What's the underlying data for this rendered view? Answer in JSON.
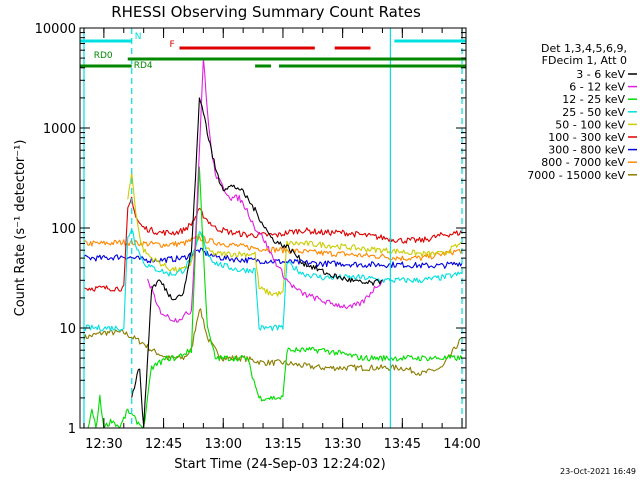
{
  "chart_data": {
    "type": "line",
    "title": "RHESSI Observing Summary Count Rates",
    "xlabel": "Start Time (24-Sep-03 12:24:02)",
    "ylabel": "Count Rate (s⁻¹ detector⁻¹)",
    "xlim": [
      "12:24",
      "14:01"
    ],
    "ylim": [
      1,
      10000
    ],
    "y_scale": "log",
    "x_ticks": [
      "12:30",
      "12:45",
      "13:00",
      "13:15",
      "13:30",
      "13:45",
      "14:00"
    ],
    "y_ticks": [
      "1",
      "10",
      "100",
      "1000",
      "10000"
    ],
    "legend_placement": "right",
    "legend_header": [
      "Det 1,3,4,5,6,9,",
      "FDecim 1, Att 0"
    ],
    "date_stamp": "23-Oct-2021 16:49",
    "series": [
      {
        "name": "3 - 6 keV",
        "color": "#000000",
        "x": [
          "12:37",
          "12:38",
          "12:39",
          "12:40",
          "12:42",
          "12:44",
          "12:47",
          "12:50",
          "12:52",
          "12:53",
          "12:54",
          "12:55",
          "12:56",
          "12:57",
          "12:58",
          "12:59",
          "13:00",
          "13:02",
          "13:04",
          "13:06",
          "13:08",
          "13:10",
          "13:12",
          "13:14",
          "13:16",
          "13:18",
          "13:20",
          "13:23",
          "13:26",
          "13:29",
          "13:32",
          "13:35",
          "13:38",
          "13:40"
        ],
        "y": [
          2,
          3,
          4,
          1,
          25,
          30,
          20,
          22,
          60,
          300,
          2000,
          1500,
          900,
          600,
          400,
          300,
          250,
          260,
          250,
          200,
          150,
          110,
          80,
          70,
          65,
          55,
          45,
          40,
          35,
          32,
          30,
          28,
          28,
          30
        ]
      },
      {
        "name": "6 - 12 keV",
        "color": "#e020e0",
        "x": [
          "12:41",
          "12:42",
          "12:43",
          "12:44",
          "12:46",
          "12:48",
          "12:50",
          "12:52",
          "12:53",
          "12:54",
          "12:55",
          "12:56",
          "12:57",
          "12:58",
          "13:00",
          "13:02",
          "13:04",
          "13:06",
          "13:08",
          "13:10",
          "13:12",
          "13:14",
          "13:16",
          "13:18",
          "13:20",
          "13:23",
          "13:26",
          "13:29",
          "13:32",
          "13:35",
          "13:38",
          "13:40"
        ],
        "y": [
          30,
          25,
          18,
          15,
          13,
          12,
          13,
          15,
          80,
          600,
          5000,
          1500,
          600,
          350,
          250,
          200,
          200,
          150,
          100,
          80,
          55,
          40,
          30,
          25,
          22,
          20,
          18,
          17,
          16,
          18,
          25,
          30
        ]
      },
      {
        "name": "12 - 25 keV",
        "color": "#00dd00",
        "x": [
          "12:26",
          "12:27",
          "12:28",
          "12:29",
          "12:30",
          "12:32",
          "12:34",
          "12:36",
          "12:38",
          "12:40",
          "12:42",
          "12:44",
          "12:46",
          "12:48",
          "12:50",
          "12:52",
          "12:53",
          "12:54",
          "12:55",
          "12:56",
          "12:58",
          "13:00",
          "13:02",
          "13:04",
          "13:06",
          "13:09",
          "13:11",
          "13:13",
          "13:15",
          "13:16",
          "13:20",
          "13:25",
          "13:30",
          "13:35",
          "13:40",
          "13:45",
          "13:50",
          "13:55",
          "14:00"
        ],
        "y": [
          1,
          1.5,
          1,
          2,
          1,
          1.2,
          1,
          1.5,
          1.2,
          1,
          4,
          4.5,
          5,
          5,
          5.5,
          6,
          60,
          400,
          60,
          10,
          5,
          5,
          5,
          5,
          5,
          2,
          2,
          2,
          2,
          6,
          6,
          6,
          5.5,
          5,
          5,
          5,
          5,
          5,
          5
        ]
      },
      {
        "name": "25 - 50 keV",
        "color": "#00e0e0",
        "x": [
          "12:25",
          "12:30",
          "12:35",
          "12:36",
          "12:37",
          "12:38",
          "12:39",
          "12:40",
          "12:42",
          "12:44",
          "12:46",
          "12:48",
          "12:50",
          "12:52",
          "12:53",
          "12:54",
          "12:55",
          "12:56",
          "12:58",
          "13:00",
          "13:02",
          "13:04",
          "13:06",
          "13:08",
          "13:09",
          "13:12",
          "13:15",
          "13:16",
          "13:20",
          "13:25",
          "13:30",
          "13:35",
          "13:40",
          "13:45",
          "13:50",
          "13:55",
          "14:00"
        ],
        "y": [
          10,
          10,
          10,
          80,
          100,
          70,
          55,
          45,
          40,
          38,
          35,
          35,
          38,
          50,
          60,
          90,
          80,
          55,
          45,
          42,
          40,
          38,
          38,
          38,
          10,
          10,
          10,
          45,
          35,
          32,
          32,
          32,
          30,
          30,
          30,
          32,
          35
        ]
      },
      {
        "name": "50 - 100 keV",
        "color": "#cccc00",
        "x": [
          "12:36",
          "12:37",
          "12:38",
          "12:39",
          "12:40",
          "12:42",
          "12:44",
          "12:46",
          "12:48",
          "12:50",
          "12:52",
          "12:54",
          "12:56",
          "12:58",
          "13:00",
          "13:02",
          "13:04",
          "13:06",
          "13:08",
          "13:09",
          "13:12",
          "13:15",
          "13:16",
          "13:20",
          "13:25",
          "13:30",
          "13:35",
          "13:40",
          "13:45",
          "13:50",
          "13:55",
          "14:00"
        ],
        "y": [
          200,
          350,
          150,
          80,
          60,
          50,
          45,
          40,
          38,
          38,
          45,
          90,
          60,
          55,
          55,
          55,
          55,
          55,
          55,
          25,
          22,
          22,
          70,
          70,
          68,
          65,
          62,
          60,
          58,
          55,
          55,
          70
        ]
      },
      {
        "name": "100 - 300 keV",
        "color": "#dd0000",
        "x": [
          "12:25",
          "12:30",
          "12:35",
          "12:36",
          "12:37",
          "12:38",
          "12:39",
          "12:40",
          "12:42",
          "12:44",
          "12:46",
          "12:48",
          "12:50",
          "12:52",
          "12:54",
          "12:56",
          "12:58",
          "13:00",
          "13:02",
          "13:04",
          "13:06",
          "13:08",
          "13:10",
          "13:12",
          "13:14",
          "13:16",
          "13:20",
          "13:25",
          "13:30",
          "13:35",
          "13:40",
          "13:45",
          "13:50",
          "13:55",
          "14:00"
        ],
        "y": [
          25,
          25,
          25,
          150,
          200,
          130,
          110,
          100,
          95,
          90,
          90,
          90,
          95,
          110,
          150,
          120,
          100,
          95,
          90,
          88,
          85,
          85,
          85,
          85,
          85,
          90,
          95,
          90,
          90,
          85,
          80,
          75,
          75,
          85,
          90
        ]
      },
      {
        "name": "300 - 800 keV",
        "color": "#0000dd",
        "x": [
          "12:25",
          "12:30",
          "12:35",
          "12:40",
          "12:45",
          "12:50",
          "12:52",
          "12:54",
          "12:56",
          "12:58",
          "13:00",
          "13:05",
          "13:10",
          "13:15",
          "13:20",
          "13:25",
          "13:30",
          "13:35",
          "13:40",
          "13:45",
          "13:50",
          "13:55",
          "14:00"
        ],
        "y": [
          50,
          50,
          52,
          48,
          48,
          50,
          55,
          60,
          55,
          52,
          50,
          48,
          47,
          46,
          45,
          44,
          44,
          43,
          43,
          43,
          42,
          42,
          45
        ]
      },
      {
        "name": "800 - 7000 keV",
        "color": "#ff8800",
        "x": [
          "12:25",
          "12:30",
          "12:35",
          "12:40",
          "12:45",
          "12:50",
          "12:52",
          "12:54",
          "12:56",
          "12:58",
          "13:00",
          "13:05",
          "13:10",
          "13:15",
          "13:20",
          "13:25",
          "13:30",
          "13:35",
          "13:40",
          "13:45",
          "13:50",
          "13:55",
          "14:00"
        ],
        "y": [
          70,
          70,
          72,
          70,
          68,
          70,
          75,
          80,
          75,
          72,
          70,
          65,
          62,
          60,
          58,
          56,
          55,
          53,
          52,
          50,
          50,
          55,
          60
        ]
      },
      {
        "name": "7000 - 15000 keV",
        "color": "#8b7d00",
        "x": [
          "12:25",
          "12:30",
          "12:35",
          "12:40",
          "12:42",
          "12:44",
          "12:46",
          "12:48",
          "12:50",
          "12:52",
          "12:53",
          "12:54",
          "12:55",
          "12:56",
          "12:58",
          "13:00",
          "13:05",
          "13:10",
          "13:15",
          "13:20",
          "13:25",
          "13:30",
          "13:35",
          "13:40",
          "13:45",
          "13:50",
          "13:55",
          "14:00"
        ],
        "y": [
          8,
          9,
          9,
          7,
          6,
          5.5,
          5,
          5,
          5,
          6,
          10,
          16,
          12,
          8,
          6,
          5,
          5,
          4.5,
          4.5,
          4.2,
          4,
          4,
          4,
          4,
          4,
          3.5,
          4,
          8
        ]
      }
    ],
    "annotations": [
      {
        "label": "N",
        "color": "#00e0e0",
        "segments": [
          [
            "12:24",
            "12:37"
          ],
          [
            "13:43",
            "14:01"
          ]
        ]
      },
      {
        "label": "F",
        "color": "#dd0000",
        "segments": [
          [
            "12:49",
            "13:23"
          ],
          [
            "13:28",
            "13:37"
          ]
        ]
      },
      {
        "label": "RD0",
        "color": "#008800",
        "segments": [
          [
            "12:36",
            "14:01"
          ]
        ]
      },
      {
        "label": "RD4",
        "color": "#008800",
        "segments": [
          [
            "12:24",
            "12:37"
          ],
          [
            "13:08",
            "13:12"
          ],
          [
            "13:14",
            "14:01"
          ]
        ]
      }
    ],
    "vertical_lines": [
      {
        "x": "12:25",
        "color": "#00e0e0",
        "style": "solid"
      },
      {
        "x": "12:37",
        "color": "#00e0e0",
        "style": "dashed"
      },
      {
        "x": "13:42",
        "color": "#00e0e0",
        "style": "solid"
      },
      {
        "x": "14:00",
        "color": "#00e0e0",
        "style": "dashed"
      }
    ]
  }
}
